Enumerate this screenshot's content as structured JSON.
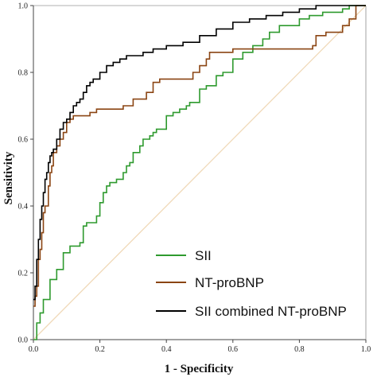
{
  "chart_data": {
    "type": "line",
    "xlabel": "1 - Specificity",
    "ylabel": "Sensitivity",
    "xlim": [
      0,
      1
    ],
    "ylim": [
      0,
      1
    ],
    "xticks": [
      "0.0",
      "0.2",
      "0.4",
      "0.6",
      "0.8",
      "1.0"
    ],
    "yticks": [
      "0.0",
      "0.2",
      "0.4",
      "0.6",
      "0.8",
      "1.0"
    ],
    "grid": false,
    "legend_position": "bottom-right",
    "reference_line": {
      "color": "#f0d9b8",
      "x": [
        0,
        1
      ],
      "y": [
        0,
        1
      ]
    },
    "series": [
      {
        "name": "SII",
        "color": "#2e9a2e",
        "x": [
          0,
          0.01,
          0.01,
          0.02,
          0.02,
          0.03,
          0.03,
          0.05,
          0.05,
          0.07,
          0.07,
          0.09,
          0.09,
          0.11,
          0.11,
          0.13,
          0.14,
          0.15,
          0.16,
          0.17,
          0.19,
          0.2,
          0.21,
          0.22,
          0.23,
          0.25,
          0.27,
          0.28,
          0.29,
          0.3,
          0.3,
          0.32,
          0.33,
          0.35,
          0.36,
          0.37,
          0.4,
          0.4,
          0.42,
          0.44,
          0.46,
          0.47,
          0.5,
          0.5,
          0.52,
          0.55,
          0.55,
          0.57,
          0.6,
          0.6,
          0.63,
          0.66,
          0.66,
          0.69,
          0.69,
          0.71,
          0.71,
          0.74,
          0.77,
          0.8,
          0.8,
          0.83,
          0.83,
          0.86,
          0.87,
          0.89,
          0.93,
          0.95,
          0.97,
          1.0
        ],
        "y": [
          0,
          0.02,
          0.05,
          0.05,
          0.08,
          0.08,
          0.12,
          0.12,
          0.18,
          0.18,
          0.21,
          0.21,
          0.26,
          0.26,
          0.28,
          0.28,
          0.29,
          0.34,
          0.35,
          0.35,
          0.37,
          0.41,
          0.44,
          0.46,
          0.47,
          0.48,
          0.5,
          0.52,
          0.53,
          0.55,
          0.56,
          0.58,
          0.6,
          0.61,
          0.62,
          0.63,
          0.65,
          0.67,
          0.68,
          0.69,
          0.7,
          0.71,
          0.73,
          0.75,
          0.76,
          0.78,
          0.79,
          0.8,
          0.82,
          0.84,
          0.86,
          0.86,
          0.88,
          0.88,
          0.9,
          0.9,
          0.92,
          0.94,
          0.94,
          0.95,
          0.96,
          0.96,
          0.97,
          0.97,
          0.98,
          0.98,
          0.99,
          1.0,
          1.0,
          1.0
        ]
      },
      {
        "name": "NT-proBNP",
        "color": "#8b4513",
        "x": [
          0,
          0.005,
          0.01,
          0.015,
          0.02,
          0.025,
          0.03,
          0.035,
          0.04,
          0.045,
          0.05,
          0.055,
          0.06,
          0.07,
          0.08,
          0.09,
          0.1,
          0.11,
          0.12,
          0.13,
          0.14,
          0.15,
          0.17,
          0.19,
          0.2,
          0.22,
          0.24,
          0.27,
          0.3,
          0.33,
          0.34,
          0.36,
          0.38,
          0.4,
          0.42,
          0.45,
          0.48,
          0.5,
          0.52,
          0.53,
          0.55,
          0.6,
          0.65,
          0.7,
          0.73,
          0.78,
          0.84,
          0.85,
          0.88,
          0.9,
          0.93,
          0.95,
          0.97,
          1.0
        ],
        "y": [
          0.1,
          0.13,
          0.16,
          0.24,
          0.27,
          0.32,
          0.38,
          0.4,
          0.4,
          0.46,
          0.5,
          0.52,
          0.56,
          0.58,
          0.6,
          0.62,
          0.65,
          0.66,
          0.67,
          0.67,
          0.67,
          0.67,
          0.68,
          0.69,
          0.69,
          0.69,
          0.69,
          0.7,
          0.72,
          0.72,
          0.74,
          0.77,
          0.78,
          0.78,
          0.78,
          0.78,
          0.8,
          0.82,
          0.84,
          0.86,
          0.86,
          0.87,
          0.87,
          0.87,
          0.87,
          0.87,
          0.88,
          0.91,
          0.92,
          0.92,
          0.94,
          0.96,
          1.0,
          1.0
        ]
      },
      {
        "name": "SII combined NT-proBNP",
        "color": "#000000",
        "x": [
          0,
          0.005,
          0.01,
          0.015,
          0.02,
          0.025,
          0.03,
          0.035,
          0.04,
          0.045,
          0.05,
          0.055,
          0.06,
          0.07,
          0.08,
          0.09,
          0.1,
          0.11,
          0.12,
          0.13,
          0.14,
          0.15,
          0.16,
          0.17,
          0.18,
          0.2,
          0.22,
          0.24,
          0.26,
          0.28,
          0.3,
          0.33,
          0.36,
          0.4,
          0.45,
          0.5,
          0.55,
          0.6,
          0.65,
          0.7,
          0.75,
          0.8,
          0.85,
          0.9,
          0.95,
          1.0
        ],
        "y": [
          0.12,
          0.16,
          0.24,
          0.3,
          0.36,
          0.4,
          0.44,
          0.48,
          0.5,
          0.53,
          0.55,
          0.56,
          0.57,
          0.6,
          0.63,
          0.65,
          0.66,
          0.68,
          0.7,
          0.71,
          0.72,
          0.74,
          0.76,
          0.77,
          0.78,
          0.8,
          0.82,
          0.83,
          0.84,
          0.85,
          0.85,
          0.86,
          0.87,
          0.88,
          0.89,
          0.91,
          0.93,
          0.95,
          0.96,
          0.97,
          0.98,
          0.99,
          1.0,
          1.0,
          1.0,
          1.0
        ]
      }
    ]
  }
}
